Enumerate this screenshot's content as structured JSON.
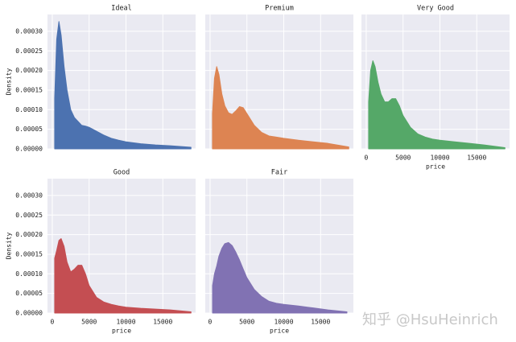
{
  "chart_data": [
    {
      "type": "area",
      "title": "Ideal",
      "color": "#4c72b0",
      "grid": true,
      "x": [
        326,
        600,
        900,
        1200,
        1600,
        2000,
        2500,
        3000,
        3500,
        4000,
        4500,
        5000,
        6000,
        7000,
        8000,
        9000,
        10000,
        12000,
        14000,
        16000,
        18823
      ],
      "values": [
        0.00013,
        0.00028,
        0.000325,
        0.00029,
        0.00021,
        0.00015,
        0.0001,
        8e-05,
        7e-05,
        6e-05,
        5.8e-05,
        5.5e-05,
        4.5e-05,
        3.5e-05,
        2.7e-05,
        2.2e-05,
        1.8e-05,
        1.3e-05,
        1e-05,
        8e-06,
        4e-06
      ],
      "xlim": [
        -650,
        19450
      ],
      "ylim": [
        0,
        0.000343
      ],
      "ylabel": "Density",
      "yticks": [
        {
          "value": 0,
          "label": "0.00000"
        },
        {
          "value": 5e-05,
          "label": "0.00005"
        },
        {
          "value": 0.0001,
          "label": "0.00010"
        },
        {
          "value": 0.00015,
          "label": "0.00015"
        },
        {
          "value": 0.0002,
          "label": "0.00020"
        },
        {
          "value": 0.00025,
          "label": "0.00025"
        },
        {
          "value": 0.0003,
          "label": "0.00030"
        }
      ]
    },
    {
      "type": "area",
      "title": "Premium",
      "color": "#dd8452",
      "grid": true,
      "x": [
        326,
        600,
        900,
        1200,
        1600,
        2000,
        2500,
        3000,
        3500,
        4000,
        4500,
        5000,
        6000,
        7000,
        8000,
        9000,
        10000,
        12000,
        14000,
        16000,
        18823
      ],
      "values": [
        9e-05,
        0.00018,
        0.00021,
        0.00019,
        0.00014,
        0.00011,
        9.2e-05,
        8.8e-05,
        9.7e-05,
        0.000108,
        0.000105,
        9e-05,
        6e-05,
        4.2e-05,
        3.3e-05,
        3e-05,
        2.7e-05,
        2.2e-05,
        1.8e-05,
        1.4e-05,
        5e-06
      ],
      "xlim": [
        -650,
        19450
      ],
      "ylim": [
        0,
        0.000343
      ]
    },
    {
      "type": "area",
      "title": "Very Good",
      "color": "#55a868",
      "grid": true,
      "x": [
        326,
        600,
        900,
        1200,
        1600,
        2000,
        2500,
        3000,
        3500,
        4000,
        4500,
        5000,
        6000,
        7000,
        8000,
        9000,
        10000,
        12000,
        14000,
        16000,
        18823
      ],
      "values": [
        0.00012,
        0.0002,
        0.000225,
        0.00021,
        0.00017,
        0.00014,
        0.00012,
        0.00012,
        0.000128,
        0.000128,
        0.00011,
        8.5e-05,
        5.5e-05,
        3.8e-05,
        3e-05,
        2.5e-05,
        2.2e-05,
        1.8e-05,
        1.4e-05,
        1e-05,
        3e-06
      ],
      "xlim": [
        -650,
        19450
      ],
      "ylim": [
        0,
        0.000343
      ],
      "xlabel": "price",
      "xticks": [
        0,
        5000,
        10000,
        15000
      ]
    },
    {
      "type": "area",
      "title": "Good",
      "color": "#c44e52",
      "grid": true,
      "x": [
        326,
        600,
        900,
        1200,
        1600,
        2000,
        2500,
        3000,
        3500,
        4000,
        4500,
        5000,
        6000,
        7000,
        8000,
        9000,
        10000,
        12000,
        14000,
        16000,
        18823
      ],
      "values": [
        0.00014,
        0.00016,
        0.000185,
        0.00019,
        0.00017,
        0.00013,
        0.000105,
        0.000112,
        0.000122,
        0.000122,
        0.0001,
        7e-05,
        4e-05,
        2.8e-05,
        2.2e-05,
        1.8e-05,
        1.5e-05,
        1.2e-05,
        1e-05,
        8e-06,
        3e-06
      ],
      "xlim": [
        -650,
        19450
      ],
      "ylim": [
        0,
        0.000343
      ],
      "xlabel": "price",
      "ylabel": "Density",
      "xticks": [
        0,
        5000,
        10000,
        15000
      ],
      "yticks": [
        {
          "value": 0,
          "label": "0.00000"
        },
        {
          "value": 5e-05,
          "label": "0.00005"
        },
        {
          "value": 0.0001,
          "label": "0.00010"
        },
        {
          "value": 0.00015,
          "label": "0.00015"
        },
        {
          "value": 0.0002,
          "label": "0.00020"
        },
        {
          "value": 0.00025,
          "label": "0.00025"
        },
        {
          "value": 0.0003,
          "label": "0.00030"
        }
      ]
    },
    {
      "type": "area",
      "title": "Fair",
      "color": "#8172b3",
      "grid": true,
      "x": [
        337,
        600,
        900,
        1200,
        1600,
        2000,
        2500,
        3000,
        3500,
        4000,
        4500,
        5000,
        6000,
        7000,
        8000,
        9000,
        10000,
        12000,
        14000,
        16000,
        18574
      ],
      "values": [
        7e-05,
        0.0001,
        0.00012,
        0.000145,
        0.000165,
        0.000177,
        0.00018,
        0.000172,
        0.000155,
        0.000135,
        0.000112,
        9e-05,
        6e-05,
        4.2e-05,
        3e-05,
        2.5e-05,
        2.2e-05,
        1.8e-05,
        1.3e-05,
        8e-06,
        3e-06
      ],
      "xlim": [
        -650,
        19450
      ],
      "ylim": [
        0,
        0.000343
      ],
      "xlabel": "price",
      "xticks": [
        0,
        5000,
        10000,
        15000
      ]
    }
  ],
  "watermark": "知乎 @HsuHeinrich"
}
